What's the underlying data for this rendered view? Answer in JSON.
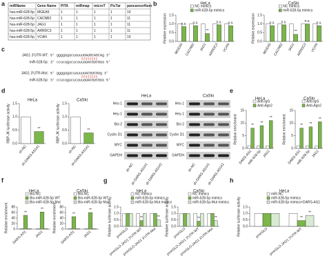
{
  "panel_labels": [
    "a",
    "b",
    "c",
    "d",
    "e",
    "f",
    "g",
    "h"
  ],
  "table": {
    "header": [
      "miRName",
      "Gene Name",
      "PITA",
      "miRmap",
      "microT",
      "PicTar",
      "pancancerNum"
    ],
    "rows": [
      [
        "hsa-miR-628-5p",
        "MGEA5",
        "1",
        "1",
        "1",
        "1",
        "10"
      ],
      [
        "hsa-miR-628-5p",
        "CACNB2",
        "1",
        "1",
        "1",
        "1",
        "11"
      ],
      [
        "hsa-miR-628-5p",
        "JAG1",
        "1",
        "1",
        "1",
        "1",
        "11"
      ],
      [
        "hsa-miR-628-5p",
        "ARRDC3",
        "1",
        "1",
        "1",
        "1",
        "11"
      ],
      [
        "hsa-miR-628-5p",
        "VCAN",
        "1",
        "1",
        "1",
        "1",
        "10"
      ]
    ]
  },
  "sequences": [
    {
      "label": "JAG1 3'UTR-WT:",
      "seq": "5' ggggagacuauuuGAUGCAGCAg 3'"
    },
    {
      "label": "miR-628-5p:",
      "seq": "3' ccucagucucauuaUACGUCGUa 5'"
    },
    {
      "label": "JAG1 3'UTR-Mut:",
      "seq": "5' ggggagacuauuuUACGUCGUg 3'"
    },
    {
      "label": "miR-628-5p:",
      "seq": "3' ccucagucucauuaUACGUCGUa 5'"
    }
  ],
  "blots": {
    "cell_lines": [
      "HeLa",
      "CaSki"
    ],
    "proteins": [
      "Hes-1",
      "Hey-1",
      "Bcl-2",
      "Cyclin D1",
      "MYC",
      "GAPDH"
    ],
    "lanes": [
      "sh-NC",
      "sh-DARS-AS1#1",
      "sh-DARS-AS1#2"
    ]
  },
  "chart_data": [
    {
      "type": "bar",
      "title": "HeLa",
      "ylabel": "Relative expression",
      "categories": [
        "MGEA5",
        "CACNB2",
        "JAG1",
        "ARRDC3",
        "VCAN"
      ],
      "series": [
        {
          "name": "NC mimics",
          "color": "#ffffff",
          "values": [
            1,
            1,
            1,
            1,
            1
          ]
        },
        {
          "name": "miR-628-5p mimics",
          "color": "#7ab648",
          "values": [
            0.85,
            0.9,
            0.45,
            0.95,
            0.9
          ],
          "significance": [
            "n.s.",
            "n.s.",
            "**",
            "n.s.",
            "n.s."
          ]
        }
      ],
      "ylim": [
        0,
        1.5
      ],
      "yticks": [
        {
          "value": 0,
          "label": "0.0"
        },
        {
          "value": 0.5,
          "label": "0.5"
        },
        {
          "value": 1,
          "label": "1.0"
        },
        {
          "value": 1.5,
          "label": "1.5"
        }
      ]
    },
    {
      "type": "bar",
      "title": "CaSki",
      "ylabel": "Relative expression",
      "categories": [
        "MGEA5",
        "CACNB2",
        "JAG1",
        "ARRDC3",
        "VCAN"
      ],
      "series": [
        {
          "name": "NC mimics",
          "color": "#ffffff",
          "values": [
            1,
            1,
            1,
            1,
            1
          ]
        },
        {
          "name": "miR-628-5p mimics",
          "color": "#7ab648",
          "values": [
            0.9,
            0.95,
            0.4,
            1,
            0.9
          ],
          "significance": [
            "n.s.",
            "n.s.",
            "**",
            "n.s.",
            "n.s."
          ]
        }
      ],
      "ylim": [
        0,
        1.5
      ],
      "yticks": [
        {
          "value": 0,
          "label": "0.0"
        },
        {
          "value": 0.5,
          "label": "0.5"
        },
        {
          "value": 1,
          "label": "1.0"
        },
        {
          "value": 1.5,
          "label": "1.5"
        }
      ]
    },
    {
      "type": "bar",
      "title": "HeLa",
      "ylabel": "RBP-JK luciferase activity",
      "categories": [
        "sh-NC",
        "sh-DARS-AS1#1"
      ],
      "values": [
        1,
        0.45
      ],
      "colors": [
        "#ffffff",
        "#7ab648"
      ],
      "significance": [
        null,
        "**"
      ],
      "ylim": [
        0,
        1.5
      ],
      "yticks": [
        {
          "value": 0,
          "label": "0.0"
        },
        {
          "value": 0.5,
          "label": "0.5"
        },
        {
          "value": 1,
          "label": "1.0"
        },
        {
          "value": 1.5,
          "label": "1.5"
        }
      ]
    },
    {
      "type": "bar",
      "title": "CaSki",
      "ylabel": "RBP-JK luciferase activity",
      "categories": [
        "sh-NC",
        "sh-DARS-AS1#1"
      ],
      "values": [
        1,
        0.4
      ],
      "colors": [
        "#ffffff",
        "#7ab648"
      ],
      "significance": [
        null,
        "**"
      ],
      "ylim": [
        0,
        1.5
      ],
      "yticks": [
        {
          "value": 0,
          "label": "0.0"
        },
        {
          "value": 0.5,
          "label": "0.5"
        },
        {
          "value": 1,
          "label": "1.0"
        },
        {
          "value": 1.5,
          "label": "1.5"
        }
      ]
    },
    {
      "type": "bar",
      "title": "HeLa",
      "ylabel": "Relative enrichment",
      "categories": [
        "DARS-AS1",
        "miR-628-5p",
        "JAG1"
      ],
      "series": [
        {
          "name": "Anti-IgG",
          "color": "#ffffff",
          "values": [
            1,
            1,
            1
          ]
        },
        {
          "name": "Anti-Ago2",
          "color": "#7ab648",
          "values": [
            8,
            9,
            11
          ],
          "significance": [
            "**",
            "**",
            "**"
          ]
        }
      ],
      "ylim": [
        0,
        15
      ],
      "yticks": [
        0,
        5,
        10,
        15
      ]
    },
    {
      "type": "bar",
      "title": "CaSki",
      "ylabel": "Relative enrichment",
      "categories": [
        "DARS-AS1",
        "miR-628-5p",
        "JAG1"
      ],
      "series": [
        {
          "name": "Anti-IgG",
          "color": "#ffffff",
          "values": [
            1,
            1,
            1
          ]
        },
        {
          "name": "Anti-Ago2",
          "color": "#7ab648",
          "values": [
            8,
            8.5,
            10.5
          ],
          "significance": [
            "**",
            "**",
            "**"
          ]
        }
      ],
      "ylim": [
        0,
        15
      ],
      "yticks": [
        0,
        5,
        10,
        15
      ]
    },
    {
      "type": "bar",
      "title": "HeLa",
      "ylabel": "Relative enrichment",
      "categories": [
        "DARS-AS1",
        "JAG1"
      ],
      "series": [
        {
          "name": "Bio-NC",
          "color": "#ffffff",
          "values": [
            1,
            1
          ]
        },
        {
          "name": "Bio-miR-628-5p WT",
          "color": "#7ab648",
          "values": [
            50,
            62
          ],
          "significance": [
            "**",
            "**"
          ]
        },
        {
          "name": "Bio-miR-628-5p Mut",
          "color": "#d9ead3",
          "values": [
            1.5,
            1.5
          ]
        }
      ],
      "ylim": [
        0,
        80
      ],
      "yticks": [
        0,
        20,
        40,
        60,
        80
      ]
    },
    {
      "type": "bar",
      "title": "CaSki",
      "ylabel": "Relative enrichment",
      "categories": [
        "DARS-AS1",
        "JAG1"
      ],
      "series": [
        {
          "name": "Bio-NC",
          "color": "#ffffff",
          "values": [
            1,
            1
          ]
        },
        {
          "name": "Bio-miR-628-5p WT",
          "color": "#7ab648",
          "values": [
            45,
            60
          ],
          "significance": [
            "**",
            "**"
          ]
        },
        {
          "name": "Bio-miR-628-5p Mut",
          "color": "#d9ead3",
          "values": [
            1.5,
            1.5
          ]
        }
      ],
      "ylim": [
        0,
        80
      ],
      "yticks": [
        0,
        20,
        40,
        60,
        80
      ]
    },
    {
      "type": "bar",
      "title": "HeLa",
      "ylabel": "Relative luciferase activity",
      "categories": [
        "pmirGLO",
        "pmirGLO-JAG1 3'UTR-WT",
        "pmirGLO-JAG1 3'UTR-Mut"
      ],
      "series": [
        {
          "name": "NC mimics",
          "color": "#ffffff",
          "values": [
            1,
            1,
            1
          ]
        },
        {
          "name": "miR-628-5p mimics",
          "color": "#7ab648",
          "values": [
            1,
            0.45,
            1
          ],
          "significance": [
            null,
            "**",
            null
          ]
        },
        {
          "name": "miR-628-5p-Mut mimics",
          "color": "#d9ead3",
          "values": [
            1,
            1,
            0.5
          ],
          "significance": [
            null,
            null,
            "**"
          ]
        }
      ],
      "ylim": [
        0,
        1.5
      ],
      "yticks": [
        {
          "value": 0,
          "label": "0.0"
        },
        {
          "value": 0.5,
          "label": "0.5"
        },
        {
          "value": 1,
          "label": "1.0"
        },
        {
          "value": 1.5,
          "label": "1.5"
        }
      ]
    },
    {
      "type": "bar",
      "title": "CaSki",
      "ylabel": "Relative luciferase activity",
      "categories": [
        "pmirGLO",
        "pmirGLO-JAG1 3'UTR-WT",
        "pmirGLO-JAG1 3'UTR-Mut"
      ],
      "series": [
        {
          "name": "NC mimics",
          "color": "#ffffff",
          "values": [
            1,
            1,
            1
          ]
        },
        {
          "name": "miR-628-5p mimics",
          "color": "#7ab648",
          "values": [
            1,
            0.4,
            1
          ],
          "significance": [
            null,
            "**",
            null
          ]
        },
        {
          "name": "miR-628-5p-Mut mimics",
          "color": "#d9ead3",
          "values": [
            1,
            1,
            0.45
          ],
          "significance": [
            null,
            null,
            "**"
          ]
        }
      ],
      "ylim": [
        0,
        1.5
      ],
      "yticks": [
        {
          "value": 0,
          "label": "0.0"
        },
        {
          "value": 0.5,
          "label": "0.5"
        },
        {
          "value": 1,
          "label": "1.0"
        },
        {
          "value": 1.5,
          "label": "1.5"
        }
      ]
    },
    {
      "type": "bar",
      "title": "HeLa",
      "ylabel": "Relative luciferase activity",
      "categories": [
        "pmirGLO",
        "pmirGLO-JAG1 3'UTR-WT"
      ],
      "series": [
        {
          "name": "miR-NC",
          "color": "#ffffff",
          "values": [
            1,
            1
          ]
        },
        {
          "name": "miR-628-5p mimics",
          "color": "#7ab648",
          "values": [
            1,
            0.45
          ],
          "significance": [
            null,
            "**"
          ]
        },
        {
          "name": "miR-628-5p mimics+DARS-AS1",
          "color": "#d9ead3",
          "values": [
            1,
            0.85
          ],
          "significance": [
            null,
            "**"
          ]
        }
      ],
      "ylim": [
        0,
        1.5
      ],
      "yticks": [
        {
          "value": 0,
          "label": "0.0"
        },
        {
          "value": 0.5,
          "label": "0.5"
        },
        {
          "value": 1,
          "label": "1.0"
        },
        {
          "value": 1.5,
          "label": "1.5"
        }
      ]
    }
  ]
}
